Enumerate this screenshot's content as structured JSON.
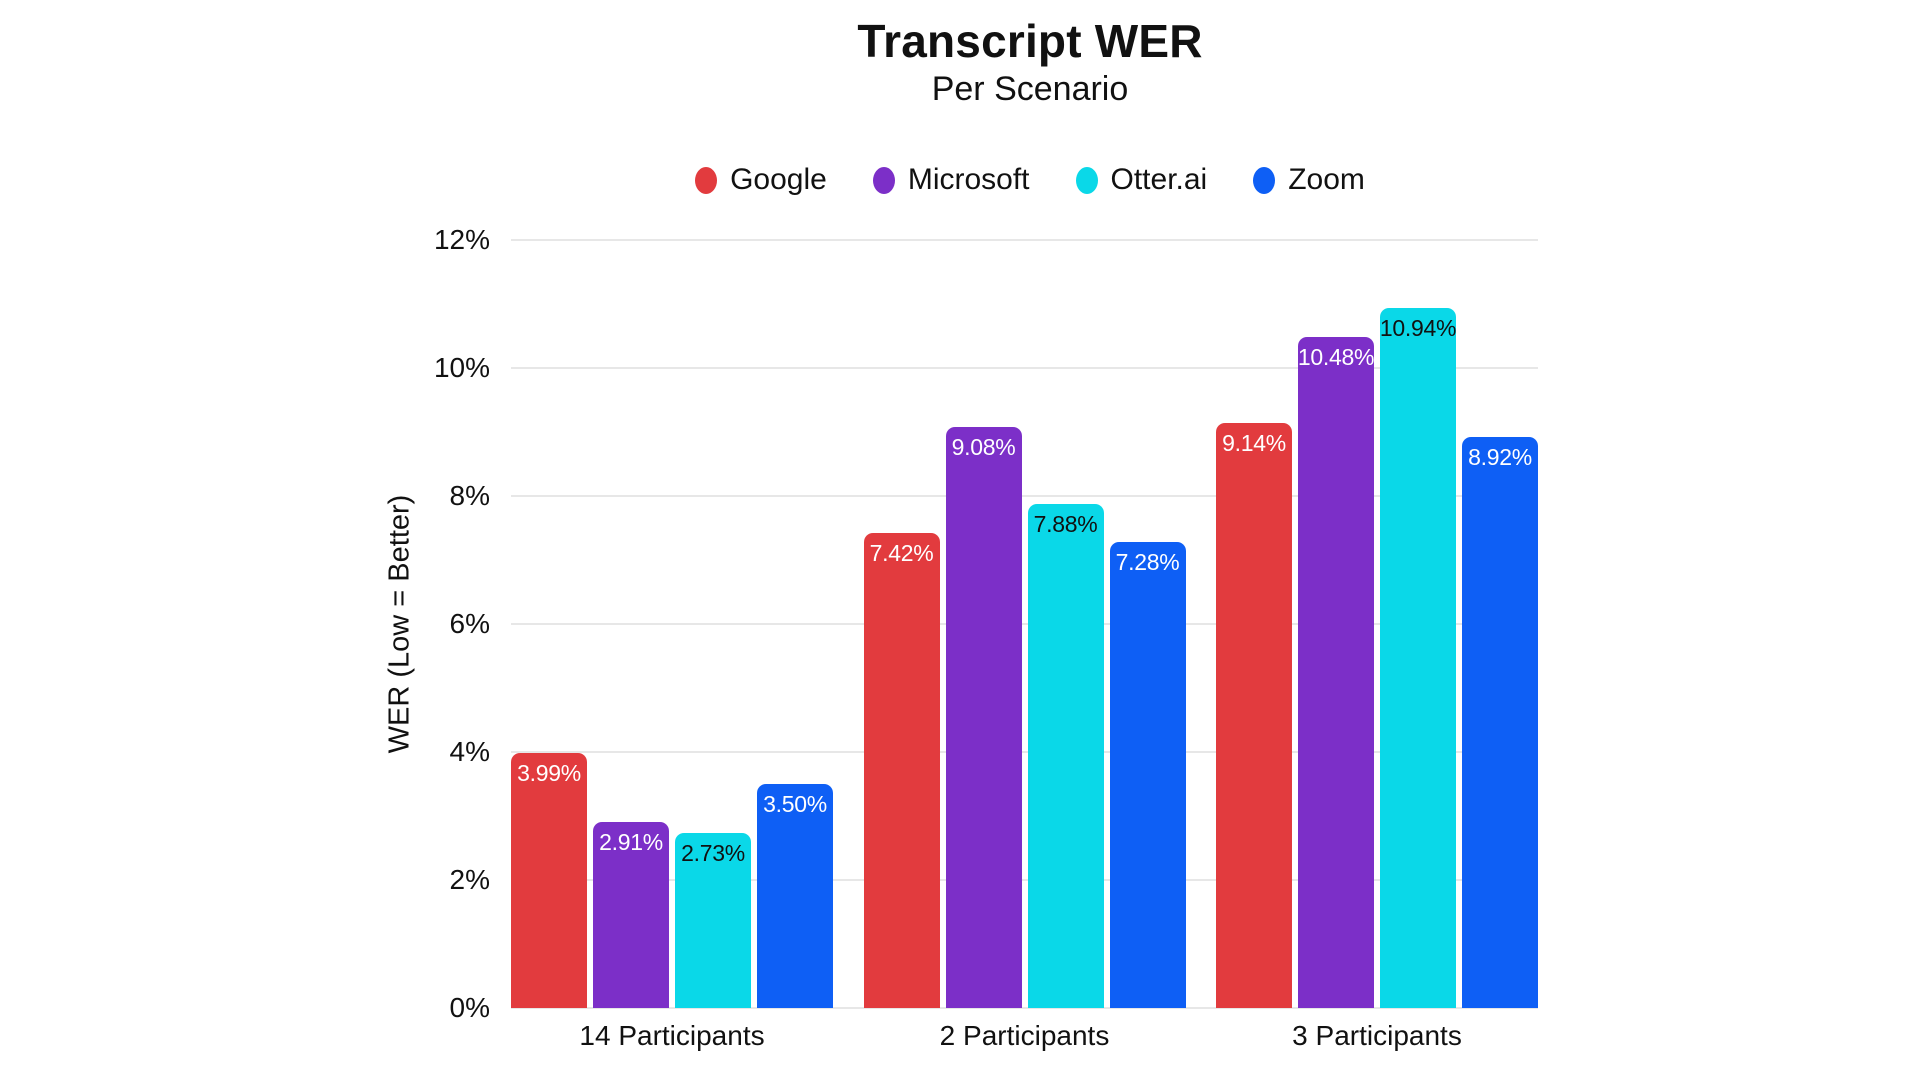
{
  "page": {
    "background_color": "#ffffff",
    "text_color": "#111111",
    "gridline_color": "#e7e7e7"
  },
  "header": {
    "title": "Transcript WER",
    "subtitle": "Per Scenario"
  },
  "chart_data": {
    "type": "bar",
    "title": "Transcript WER",
    "subtitle": "Per Scenario",
    "xlabel": "",
    "ylabel": "WER (Low = Better)",
    "ylim": [
      0,
      12
    ],
    "ytick_step": 2,
    "yticks": [
      "0%",
      "2%",
      "4%",
      "6%",
      "8%",
      "10%",
      "12%"
    ],
    "grid": true,
    "legend_position": "top",
    "categories": [
      "14 Participants",
      "2 Participants",
      "3 Participants"
    ],
    "series": [
      {
        "name": "Google",
        "color": "#e23b3e",
        "label_color": "#ffffff",
        "values": [
          3.99,
          7.42,
          9.14
        ],
        "labels": [
          "3.99%",
          "7.42%",
          "9.14%"
        ]
      },
      {
        "name": "Microsoft",
        "color": "#7c2fc8",
        "label_color": "#ffffff",
        "values": [
          2.91,
          9.08,
          10.48
        ],
        "labels": [
          "2.91%",
          "9.08%",
          "10.48%"
        ]
      },
      {
        "name": "Otter.ai",
        "color": "#0ad8e8",
        "label_color": "#111111",
        "values": [
          2.73,
          7.88,
          10.94
        ],
        "labels": [
          "2.73%",
          "7.88%",
          "10.94%"
        ]
      },
      {
        "name": "Zoom",
        "color": "#0e5ff5",
        "label_color": "#ffffff",
        "values": [
          3.5,
          7.28,
          8.92
        ],
        "labels": [
          "3.50%",
          "7.28%",
          "8.92%"
        ]
      }
    ]
  }
}
